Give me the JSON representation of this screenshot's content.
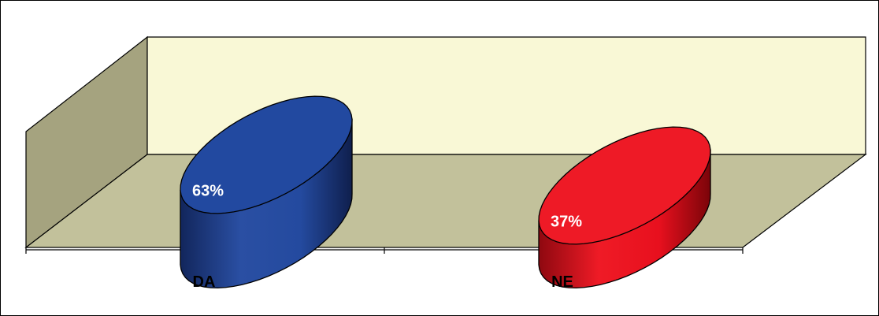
{
  "chart_data": {
    "type": "bar",
    "style": "3d-cylinder",
    "title": "",
    "xlabel": "",
    "ylabel": "",
    "categories": [
      "DA",
      "NE"
    ],
    "values": [
      63,
      37
    ],
    "data_labels": [
      "63%",
      "37%"
    ],
    "unit": "%",
    "ylim": [
      0,
      100
    ],
    "grid": false,
    "legend": "none",
    "colors": [
      "#22479a",
      "#e8101e"
    ]
  },
  "colors": {
    "back_wall": "#f9f8d6",
    "side_wall": "#a5a37f",
    "floor": "#c2c19b"
  }
}
